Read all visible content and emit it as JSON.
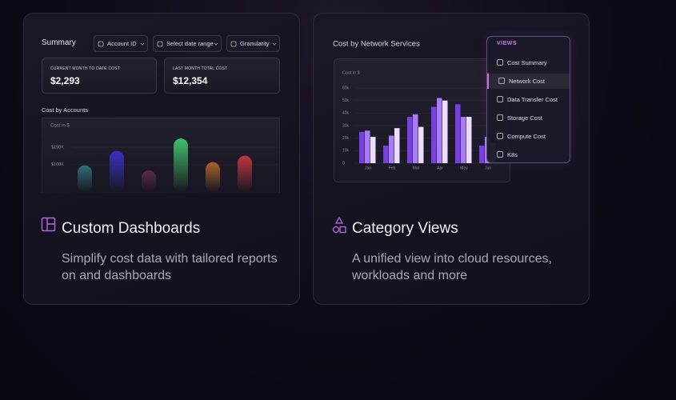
{
  "cards": [
    {
      "summary_title": "Summary",
      "filters": [
        "Account ID",
        "Select date range",
        "Granularity"
      ],
      "stats": [
        {
          "label": "CURRENT MONTH TO DATE COST",
          "value": "$2,293"
        },
        {
          "label": "LAST MONTH TOTAL COST",
          "value": "$12,354"
        }
      ],
      "heading": "Custom Dashboards",
      "description": "Simplify cost data with tailored reports on and dashboards"
    },
    {
      "menu_title": "VIEWS",
      "menu_items": [
        "Cost Summary",
        "Network Cost",
        "Data Transfer Cost",
        "Storage Cost",
        "Compute Cost",
        "K8s"
      ],
      "heading": "Category Views",
      "description": "A unified view into cloud resources, workloads and more"
    }
  ],
  "chart_data": [
    {
      "type": "bar",
      "title": "Cost by Accounts",
      "y_label": "Cost in $",
      "values": [
        98,
        140,
        83,
        176,
        107,
        126
      ],
      "colors": [
        "#2f6f78",
        "#3b2fc4",
        "#5a2b4e",
        "#3fbf6a",
        "#a8642a",
        "#c0353f"
      ],
      "ylim": [
        20,
        230
      ],
      "yticks": [
        {
          "value": 150,
          "label": "$150K"
        },
        {
          "value": 100,
          "label": "$100K"
        }
      ]
    },
    {
      "type": "bar",
      "title": "Cost by Network Services",
      "y_label": "Cost in $",
      "categories": [
        "Jan",
        "Feb",
        "Mar",
        "Apr",
        "May",
        "Jun"
      ],
      "series": [
        {
          "color": "#7a3fe0",
          "values": [
            25,
            14,
            37,
            45,
            47,
            14
          ]
        },
        {
          "color": "#a87cf2",
          "values": [
            26,
            22,
            39,
            52,
            37,
            21
          ]
        },
        {
          "color": "#ecdcff",
          "values": [
            21,
            28,
            29,
            50,
            37,
            16
          ]
        }
      ],
      "ylim": [
        0,
        60
      ],
      "yticks": [
        0,
        {
          "value": 10,
          "label": "10k"
        },
        {
          "value": 20,
          "label": "20k"
        },
        {
          "value": 30,
          "label": "30k"
        },
        {
          "value": 40,
          "label": "40k"
        },
        {
          "value": 50,
          "label": "50k"
        },
        {
          "value": 60,
          "label": "60k"
        }
      ]
    }
  ]
}
